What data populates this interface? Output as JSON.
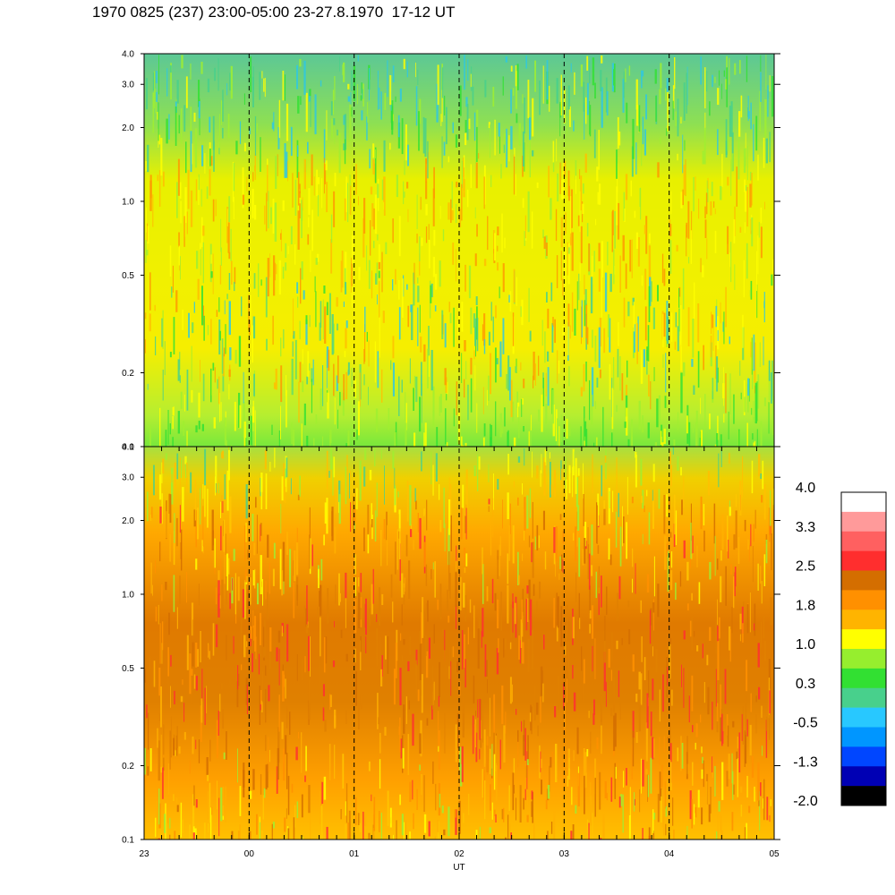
{
  "header": {
    "title": "1970 0825 (237) 23:00-05:00 23-27.8.1970  17-12 UT"
  },
  "chart_data": [
    {
      "type": "heatmap",
      "panel": "upper",
      "ytick_labels": [
        "4.0",
        "3.0",
        "2.0",
        "1.0",
        "0.5",
        "0.2",
        "0.1"
      ],
      "y_scale": "log",
      "ylim": [
        0.1,
        4.0
      ],
      "dominant_colors": [
        "#f5f500",
        "#a3f03c",
        "#4fd28a",
        "#2ea8c8"
      ]
    },
    {
      "type": "heatmap",
      "panel": "lower",
      "ytick_labels": [
        "4.0",
        "3.0",
        "2.0",
        "1.0",
        "0.5",
        "0.2",
        "0.1"
      ],
      "y_scale": "log",
      "ylim": [
        0.1,
        4.0
      ],
      "xlabel": "UT",
      "xtick_labels": [
        "23",
        "00",
        "01",
        "02",
        "03",
        "04",
        "05"
      ],
      "dominant_colors": [
        "#ffb000",
        "#ff9000",
        "#d97000",
        "#ff3030"
      ]
    }
  ],
  "colorbar": {
    "labels": [
      "4.0",
      "3.3",
      "2.5",
      "1.8",
      "1.0",
      "0.3",
      "-0.5",
      "-1.3",
      "-2.0"
    ],
    "colors_top_to_bottom": [
      "#ffffff",
      "#ff9a9a",
      "#ff6060",
      "#ff2e2e",
      "#d46e00",
      "#ff9000",
      "#ffb400",
      "#ffff00",
      "#96ee2e",
      "#32e032",
      "#48d08c",
      "#28c8ff",
      "#0096ff",
      "#0046ff",
      "#0000b4",
      "#000000"
    ]
  }
}
